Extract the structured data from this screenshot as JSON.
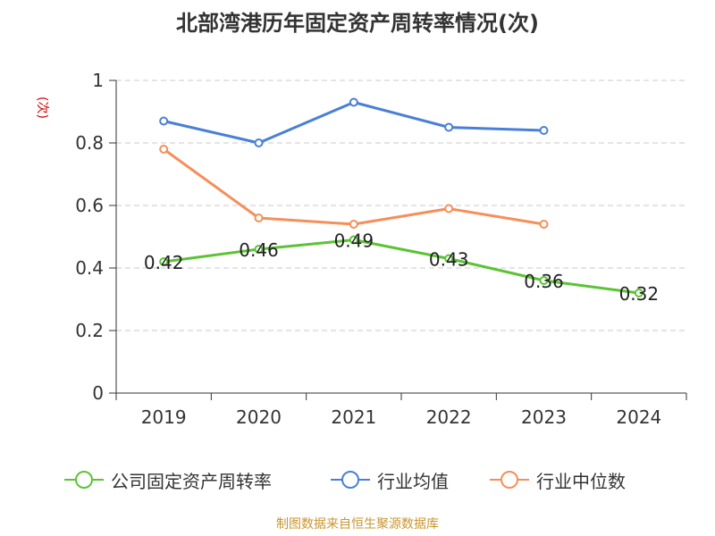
{
  "chart_data": {
    "type": "line",
    "title": "北部湾港历年固定资产周转率情况(次)",
    "ylabel": "(次)",
    "xlabel": "",
    "categories": [
      "2019",
      "2020",
      "2021",
      "2022",
      "2023",
      "2024"
    ],
    "ylim": [
      0,
      1
    ],
    "yticks": [
      "0",
      "0.2",
      "0.4",
      "0.6",
      "0.8",
      "1"
    ],
    "grid": true,
    "legend_position": "bottom",
    "series": [
      {
        "name": "公司固定资产周转率",
        "values": [
          0.42,
          0.46,
          0.49,
          0.43,
          0.36,
          0.32
        ],
        "labels": [
          "0.42",
          "0.46",
          "0.49",
          "0.43",
          "0.36",
          "0.32"
        ],
        "color": "#5cc335"
      },
      {
        "name": "行业均值",
        "values": [
          0.87,
          0.8,
          0.93,
          0.85,
          0.84,
          null
        ],
        "color": "#4a7fd8"
      },
      {
        "name": "行业中位数",
        "values": [
          0.78,
          0.56,
          0.54,
          0.59,
          0.54,
          null
        ],
        "color": "#f58f5a"
      }
    ]
  },
  "source": "制图数据来自恒生聚源数据库"
}
